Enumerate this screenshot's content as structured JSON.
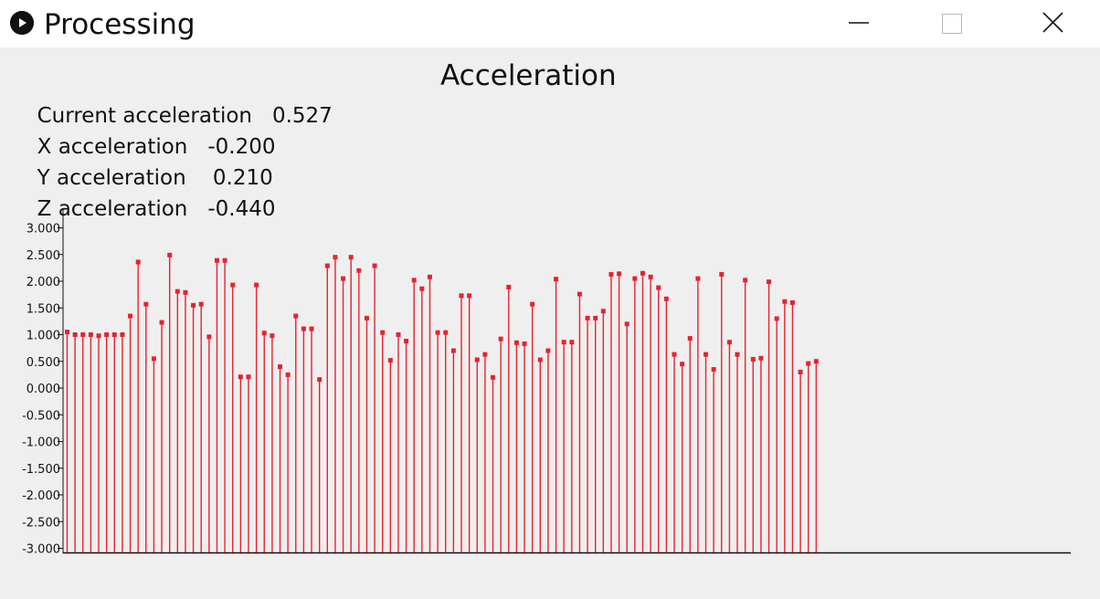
{
  "window": {
    "title": "Processing",
    "app_icon": "play-icon",
    "controls": [
      "minimize-icon",
      "maximize-icon",
      "close-icon"
    ]
  },
  "readouts": {
    "current": {
      "label": "Current acceleration",
      "value": "0.527"
    },
    "x": {
      "label": "X acceleration",
      "value": "-0.200"
    },
    "y": {
      "label": "Y acceleration",
      "value": " 0.210"
    },
    "z": {
      "label": "Z acceleration",
      "value": "-0.440"
    }
  },
  "colors": {
    "stem": "#e8222e",
    "axis": "#111111",
    "background": "#efefef"
  },
  "chart_data": {
    "type": "stem",
    "title": "Acceleration",
    "xlabel": "",
    "ylabel": "",
    "ylim": [
      -3,
      3
    ],
    "ytick_labels": [
      "3.000",
      "2.500",
      "2.000",
      "1.500",
      "1.000",
      "0.500",
      "0.000",
      "-0.500",
      "-1.000",
      "-1.500",
      "-2.000",
      "-2.500",
      "-3.000"
    ],
    "grid": false,
    "values": [
      1.05,
      1.0,
      1.0,
      1.0,
      0.98,
      1.0,
      1.0,
      1.0,
      1.35,
      2.36,
      1.57,
      0.55,
      1.23,
      2.49,
      1.81,
      1.79,
      1.55,
      1.57,
      0.96,
      2.39,
      2.39,
      1.93,
      0.21,
      0.21,
      1.93,
      1.03,
      0.98,
      0.4,
      0.25,
      1.35,
      1.11,
      1.11,
      0.16,
      2.29,
      2.45,
      2.05,
      2.45,
      2.2,
      1.31,
      2.29,
      1.04,
      0.52,
      1.0,
      0.88,
      2.02,
      1.86,
      2.08,
      1.04,
      1.04,
      0.7,
      1.73,
      1.73,
      0.53,
      0.63,
      0.2,
      0.92,
      1.89,
      0.85,
      0.83,
      1.57,
      0.53,
      0.7,
      2.04,
      0.86,
      0.86,
      1.76,
      1.31,
      1.31,
      1.44,
      2.13,
      2.14,
      1.2,
      2.05,
      2.15,
      2.08,
      1.88,
      1.67,
      0.63,
      0.45,
      0.93,
      2.05,
      0.63,
      0.35,
      2.13,
      0.86,
      0.63,
      2.02,
      0.54,
      0.56,
      1.99,
      1.3,
      1.62,
      1.6,
      0.3,
      0.46,
      0.5
    ]
  }
}
